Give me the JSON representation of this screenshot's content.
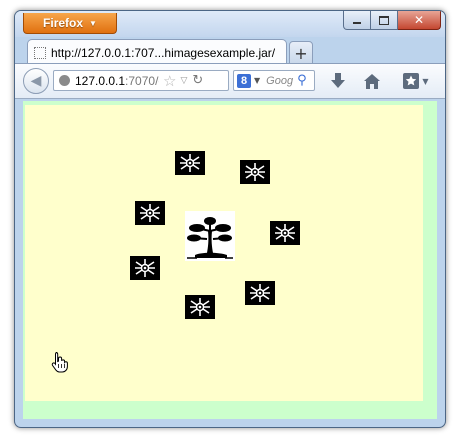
{
  "browser": {
    "app_button_label": "Firefox",
    "tab_title": "http://127.0.0.1:707...himagesexample.jar/",
    "new_tab_label": "+",
    "url_host": "127.0.0.1",
    "url_rest": ":7070/c",
    "search_engine_letter": "8",
    "search_placeholder": "Goog"
  },
  "icons": {
    "back": "back-arrow-icon",
    "site": "globe-icon",
    "bookmark_star": "star-icon",
    "reload": "reload-icon",
    "search": "magnifier-icon",
    "download": "download-arrow-icon",
    "home": "home-icon",
    "bookmarks_menu": "bookmarks-star-icon",
    "tile": "snowflake-icon",
    "center_image": "bonsai-tree-icon",
    "cursor": "hand-cursor-icon"
  },
  "colors": {
    "page_background": "#ccffcc",
    "applet_background": "#ffffcc",
    "tile_background": "#000000",
    "firefox_orange": "#e8801c"
  }
}
